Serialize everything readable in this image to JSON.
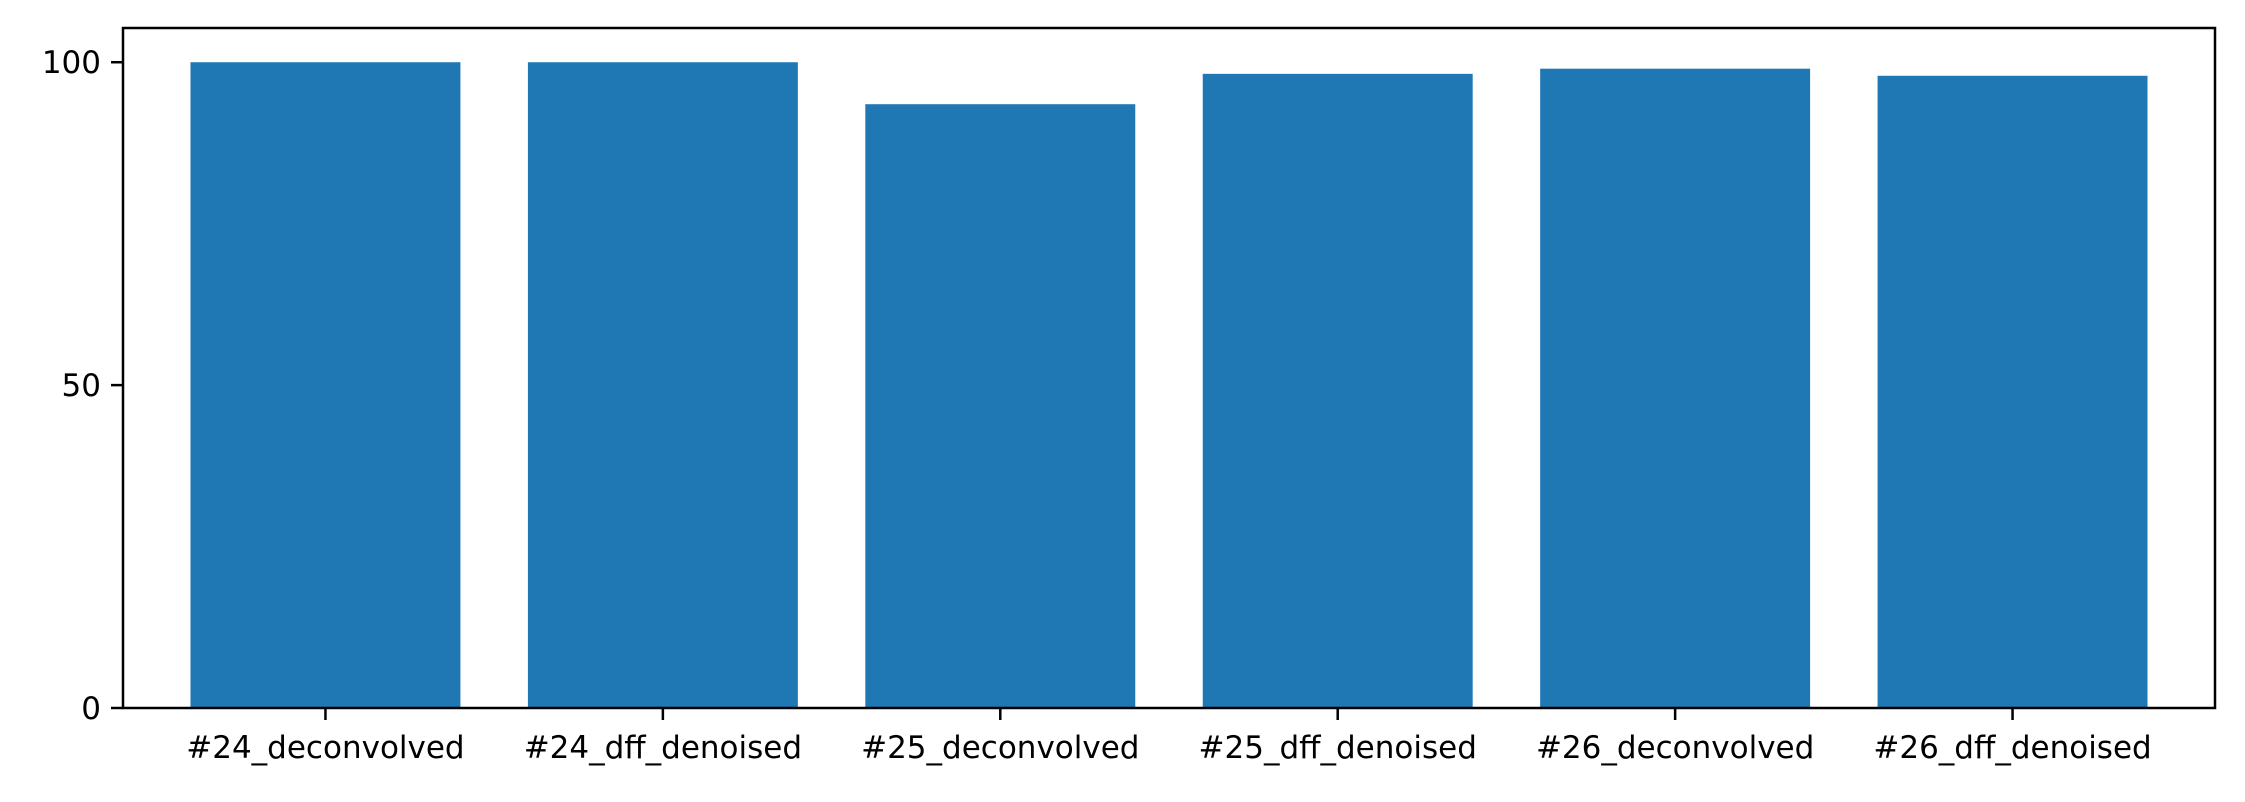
{
  "chart_data": {
    "type": "bar",
    "categories": [
      "#24_deconvolved",
      "#24_dff_denoised",
      "#25_deconvolved",
      "#25_dff_denoised",
      "#26_deconvolved",
      "#26_dff_denoised"
    ],
    "values": [
      100,
      100,
      93.5,
      98.2,
      99,
      97.9
    ],
    "title": "",
    "xlabel": "",
    "ylabel": "",
    "ylim": [
      0,
      105.3
    ],
    "yticks": [
      0,
      50,
      100
    ],
    "bar_color": "#1f77b4",
    "grid": false,
    "legend": "none"
  }
}
